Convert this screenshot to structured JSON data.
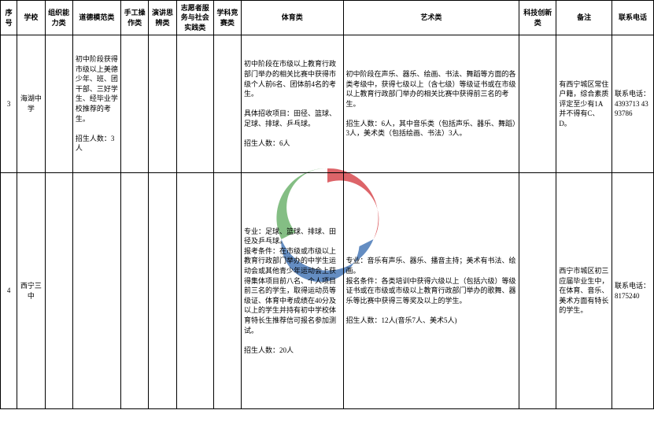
{
  "watermark": {
    "red": "#d84a4f",
    "blue": "#4a7ab8",
    "green": "#6fb36f"
  },
  "columns": [
    "序号",
    "学校",
    "组织能力类",
    "道德模范类",
    "手工操作类",
    "演讲思辨类",
    "志愿者服务与社会实践类",
    "学科竞赛类",
    "体育类",
    "艺术类",
    "科技创新类",
    "备注",
    "联系电话"
  ],
  "rows": [
    {
      "num": "3",
      "school": "海湖中学",
      "org": "",
      "moral": "初中阶段获得市级以上美德少年、班、团干部、三好学生、经毕业学校推荐的考生。\n\n招生人数：3人",
      "craft": "",
      "speech": "",
      "vol": "",
      "subj": "",
      "sport": "初中阶段在市级以上教育行政部门举办的相关比赛中获得市级个人前6名、团体前4名的考生。\n\n具体招收项目：田径、篮球、足球、排球、乒乓球。\n\n招生人数：6人",
      "art": "初中阶段在声乐、器乐、绘画、书法、舞蹈等方面的各类考级中，获得七级以上（含七级）等级证书或在市级以上教育行政部门举办的相关比赛中获得前三名的考生。\n\n招生人数：6人，其中音乐类（包括声乐、器乐、舞蹈）3人，美术类（包括绘画、书法）3人。",
      "tech": "",
      "note": "有西宁城区常住户籍，综合素质评定至少有1A并不得有C、D。",
      "phone": "联系电话：4393713 4393786"
    },
    {
      "num": "4",
      "school": "西宁三中",
      "org": "",
      "moral": "",
      "craft": "",
      "speech": "",
      "vol": "",
      "subj": "",
      "sport": "专业：足球、篮球、排球、田径及乒乓球。\n报考条件：在市级或市级以上教育行政部门举办的中学生运动会或其他青少年运动会上获得集体项目前八名、个人项目前三名的学生，取得运动员等级证、体育中考成绩在40分及以上的学生并持有初中学校体育特长生推荐信可报名参加测试。\n\n招生人数：20人",
      "art": "专业：音乐有声乐、器乐、播音主持；美术有书法、绘画。\n报名条件：各类培训中获得六级以上（包括六级）等级证书或在市级或市级以上教育行政部门举办的歌舞、器乐等比赛中获得三等奖及以上的学生。\n\n招生人数：12人(音乐7人、美术5人)",
      "tech": "",
      "note": "西宁市城区初三应届毕业生中，在体育、音乐、美术方面有特长的学生。",
      "phone": "联系电话：8175240"
    }
  ]
}
